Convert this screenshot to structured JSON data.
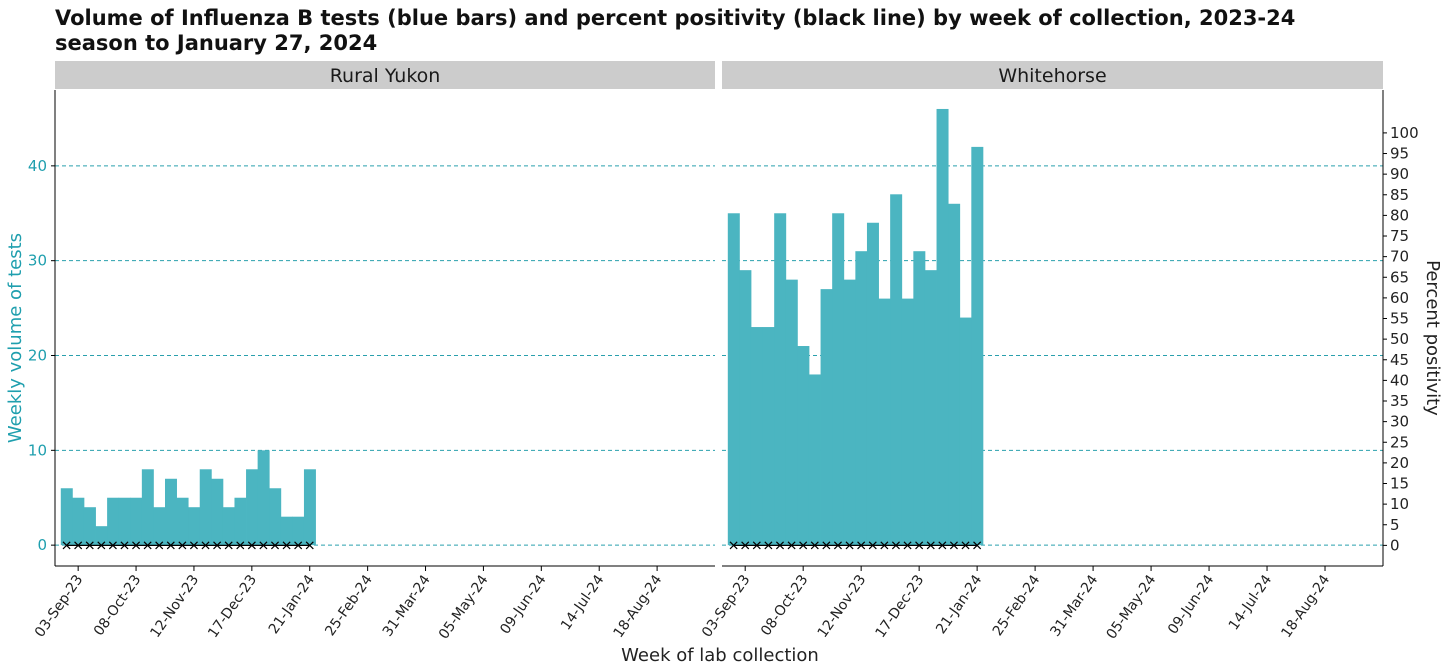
{
  "chart_data": {
    "type": "bar",
    "title": "Volume of Influenza B tests (blue bars) and percent positivity (black line) by week of collection, 2023-24 season to January 27, 2024",
    "xlabel": "Week of lab collection",
    "ylabel": "Weekly volume of tests",
    "ylabel_right": "Percent positivity",
    "ylim": [
      -2.2,
      48
    ],
    "ylim_right": [
      -5,
      110.4
    ],
    "yticks": [
      0,
      10,
      20,
      30,
      40
    ],
    "yticks_right": [
      0,
      5,
      10,
      15,
      20,
      25,
      30,
      35,
      40,
      45,
      50,
      55,
      60,
      65,
      70,
      75,
      80,
      85,
      90,
      95,
      100
    ],
    "xlim": [
      "2023-08-20",
      "2024-09-22"
    ],
    "xticks": [
      "2023-09-03",
      "2023-10-08",
      "2023-11-12",
      "2023-12-17",
      "2024-01-21",
      "2024-02-25",
      "2024-03-31",
      "2024-05-05",
      "2024-06-09",
      "2024-07-14",
      "2024-08-18"
    ],
    "xtick_labels": [
      "03-Sep-23",
      "08-Oct-23",
      "12-Nov-23",
      "17-Dec-23",
      "21-Jan-24",
      "25-Feb-24",
      "31-Mar-24",
      "05-May-24",
      "09-Jun-24",
      "14-Jul-24",
      "18-Aug-24"
    ],
    "weeks": [
      "2023-08-27",
      "2023-09-03",
      "2023-09-10",
      "2023-09-17",
      "2023-09-24",
      "2023-10-01",
      "2023-10-08",
      "2023-10-15",
      "2023-10-22",
      "2023-10-29",
      "2023-11-05",
      "2023-11-12",
      "2023-11-19",
      "2023-11-26",
      "2023-12-03",
      "2023-12-10",
      "2023-12-17",
      "2023-12-24",
      "2023-12-31",
      "2024-01-07",
      "2024-01-14",
      "2024-01-21"
    ],
    "grid": "horizontal dashed at left-axis ticks",
    "colors": {
      "bars": "#4bb5c1",
      "line": "#000000",
      "left_axis": "#1f9fae",
      "strip": "#cccccc",
      "grid": "#2aa0ad"
    },
    "panels": [
      {
        "name": "Rural Yukon",
        "tests": [
          6,
          5,
          4,
          2,
          5,
          5,
          5,
          8,
          4,
          7,
          5,
          4,
          8,
          7,
          4,
          5,
          8,
          10,
          6,
          3,
          3,
          8
        ],
        "positivity": [
          0,
          0,
          0,
          0,
          0,
          0,
          0,
          0,
          0,
          0,
          0,
          0,
          0,
          0,
          0,
          0,
          0,
          0,
          0,
          0,
          0,
          0
        ]
      },
      {
        "name": "Whitehorse",
        "tests": [
          35,
          29,
          23,
          23,
          35,
          28,
          21,
          18,
          27,
          35,
          28,
          31,
          34,
          26,
          37,
          26,
          31,
          29,
          46,
          36,
          24,
          42
        ],
        "positivity": [
          0,
          0,
          0,
          0,
          0,
          0,
          0,
          0,
          0,
          0,
          0,
          0,
          0,
          0,
          0,
          0,
          0,
          0,
          0,
          0,
          0,
          0
        ]
      }
    ]
  }
}
